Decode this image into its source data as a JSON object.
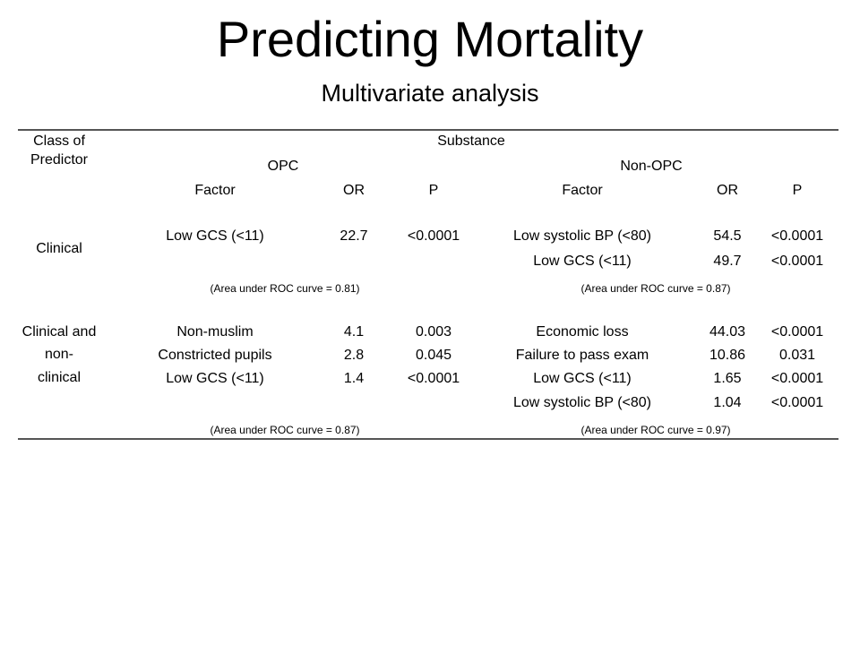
{
  "title": "Predicting Mortality",
  "subtitle": "Multivariate analysis",
  "table": {
    "class_header_line1": "Class of",
    "class_header_line2": "Predictor",
    "substance_header": "Substance",
    "opc_header": "OPC",
    "nonopc_header": "Non-OPC",
    "columns": [
      "Factor",
      "OR",
      "P",
      "Factor",
      "OR",
      "P"
    ],
    "sections": [
      {
        "class_lines": [
          "Clinical"
        ],
        "opc_rows": [
          {
            "factor": "Low GCS (<11)",
            "or": "22.7",
            "p": "<0.0001"
          }
        ],
        "nonopc_rows": [
          {
            "factor": "Low systolic BP (<80)",
            "or": "54.5",
            "p": "<0.0001"
          },
          {
            "factor": "Low GCS (<11)",
            "or": "49.7",
            "p": "<0.0001"
          }
        ],
        "opc_auc": "(Area under ROC curve = 0.81)",
        "nonopc_auc": "(Area under ROC curve = 0.87)"
      },
      {
        "class_lines": [
          "Clinical and",
          "non-",
          "clinical"
        ],
        "opc_rows": [
          {
            "factor": "Non-muslim",
            "or": "4.1",
            "p": "0.003"
          },
          {
            "factor": "Constricted pupils",
            "or": "2.8",
            "p": "0.045"
          },
          {
            "factor": "Low GCS (<11)",
            "or": "1.4",
            "p": "<0.0001"
          }
        ],
        "nonopc_rows": [
          {
            "factor": "Economic loss",
            "or": "44.03",
            "p": "<0.0001"
          },
          {
            "factor": "Failure to pass exam",
            "or": "10.86",
            "p": "0.031"
          },
          {
            "factor": "Low GCS (<11)",
            "or": "1.65",
            "p": "<0.0001"
          },
          {
            "factor": "Low systolic BP (<80)",
            "or": "1.04",
            "p": "<0.0001"
          }
        ],
        "opc_auc": "(Area under ROC curve = 0.87)",
        "nonopc_auc": "(Area under ROC curve = 0.97)"
      }
    ]
  }
}
